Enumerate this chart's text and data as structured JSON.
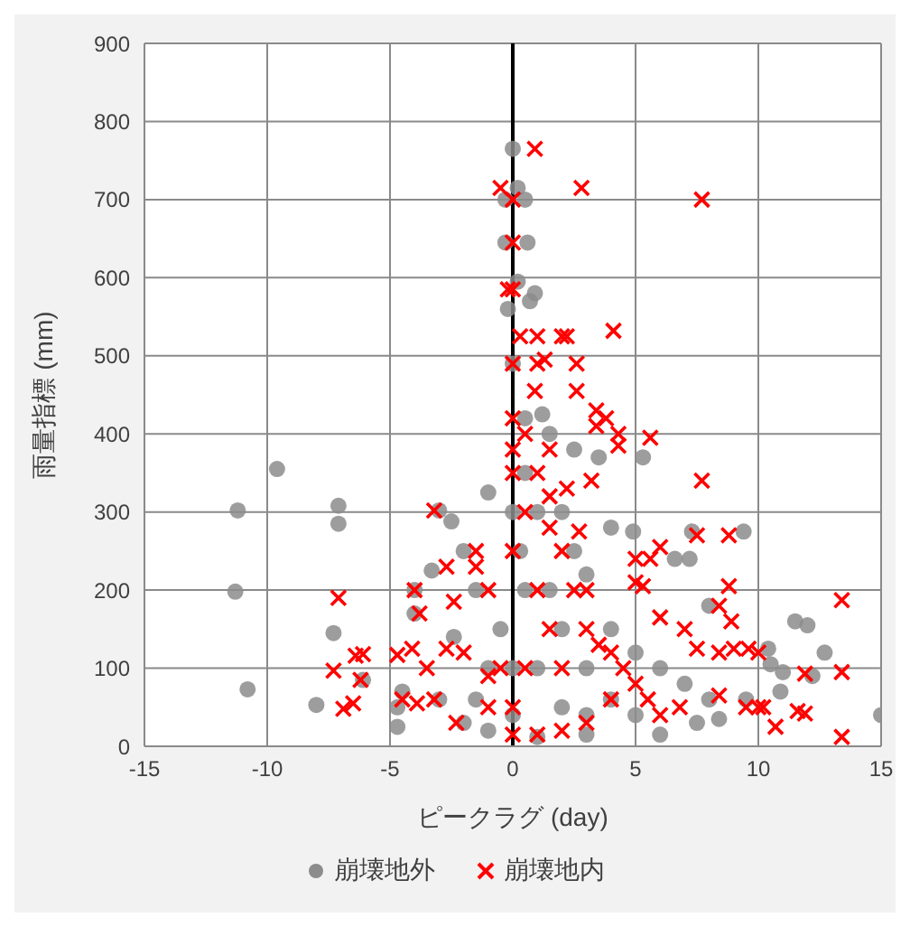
{
  "chart_data": {
    "type": "scatter",
    "xlabel": "ピークラグ (day)",
    "ylabel": "雨量指標 (mm)",
    "xlim": [
      -15,
      15
    ],
    "xticks": [
      -15,
      -10,
      -5,
      0,
      5,
      10,
      15
    ],
    "ylim": [
      0,
      900
    ],
    "yticks": [
      0,
      100,
      200,
      300,
      400,
      500,
      600,
      700,
      800,
      900
    ],
    "grid": true,
    "legend": "bottom",
    "ref_lines": [
      {
        "axis": "x",
        "value": 0,
        "color": "#000000"
      }
    ],
    "series": [
      {
        "name": "崩壊地外",
        "color": "#8c8c8c",
        "marker": "circle",
        "x": [
          -11.2,
          -11.3,
          -10.8,
          -9.6,
          -7.1,
          -7.1,
          -7.3,
          -8,
          -6.1,
          -4.7,
          -4.7,
          -3,
          -2.5,
          -3.3,
          -4,
          -4,
          -2,
          -1,
          -0.3,
          -0.3,
          0.6,
          0,
          0.2,
          0.5,
          0.2,
          -0.2,
          0.9,
          0.7,
          0,
          0.5,
          1.2,
          1.5,
          2.5,
          3.5,
          5.3,
          4,
          4.9,
          7.3,
          9.4,
          6.6,
          7.2,
          8,
          10.4,
          10.5,
          11.5,
          12,
          12.7,
          11,
          12.2,
          10.9,
          15,
          9.5,
          8.4,
          7.5,
          6,
          3,
          1,
          -1,
          -2,
          -3,
          -4.5,
          -2.4,
          -1.5,
          0,
          0.5,
          1,
          2,
          2.5,
          3,
          4,
          5,
          6,
          7,
          8,
          0,
          1,
          2,
          3,
          -0.5,
          -1,
          -1.5,
          0.5,
          1.5,
          4,
          5,
          3,
          2,
          0,
          0.3
        ],
        "values": [
          302,
          198,
          73,
          355,
          308,
          285,
          145,
          53,
          85,
          25,
          50,
          302,
          288,
          225,
          200,
          170,
          250,
          325,
          700,
          645,
          645,
          765,
          715,
          700,
          595,
          560,
          580,
          570,
          490,
          420,
          425,
          400,
          380,
          370,
          370,
          280,
          275,
          275,
          275,
          240,
          240,
          180,
          125,
          105,
          160,
          155,
          120,
          95,
          90,
          70,
          40,
          60,
          35,
          30,
          15,
          15,
          12,
          20,
          30,
          60,
          70,
          140,
          200,
          300,
          350,
          300,
          300,
          250,
          220,
          150,
          120,
          100,
          80,
          60,
          100,
          100,
          150,
          100,
          150,
          100,
          60,
          200,
          200,
          60,
          40,
          40,
          50,
          40,
          250
        ]
      },
      {
        "name": "崩壊地内",
        "color": "#ff0000",
        "marker": "cross",
        "x": [
          0.9,
          -0.5,
          2.8,
          7.7,
          0,
          0,
          0,
          -0.2,
          0.3,
          1,
          2,
          4.1,
          2.2,
          0,
          1,
          1.3,
          2.6,
          2.6,
          0.9,
          3.4,
          3.8,
          3.4,
          4.3,
          5.6,
          4.3,
          0,
          0,
          0,
          3.2,
          2.2,
          7.7,
          -3.2,
          -1.5,
          -2.4,
          -2.7,
          -4,
          -3.8,
          -1.5,
          -7.1,
          -7.3,
          -6.1,
          -6.4,
          -6.2,
          -6.5,
          -6.9,
          -4.7,
          -4.1,
          -3.5,
          -2.7,
          -3.2,
          -4.5,
          -3.9,
          -2.3,
          -2,
          -1,
          -1,
          5,
          5.6,
          6,
          5,
          5.3,
          7.5,
          8.8,
          8.8,
          8.4,
          8.9,
          6,
          7,
          7.5,
          8.4,
          9,
          9.6,
          10,
          9.5,
          10,
          10.2,
          8.4,
          6.8,
          10.7,
          11.6,
          11.9,
          11.9,
          13.4,
          13.4,
          13.4,
          0,
          0.5,
          1,
          1.5,
          2,
          2.5,
          3,
          3.5,
          4,
          4.5,
          5,
          5.5,
          6,
          0,
          0.5,
          1,
          1.5,
          2,
          2.7,
          3,
          4,
          3,
          2,
          1,
          -0.5,
          0,
          -1,
          0.5,
          1.5,
          1.5
        ],
        "values": [
          765,
          715,
          715,
          700,
          700,
          645,
          585,
          585,
          525,
          525,
          525,
          532,
          525,
          490,
          490,
          495,
          490,
          455,
          455,
          430,
          420,
          410,
          400,
          395,
          385,
          420,
          380,
          350,
          340,
          330,
          340,
          302,
          230,
          185,
          230,
          200,
          170,
          250,
          190,
          97,
          118,
          116,
          85,
          55,
          48,
          117,
          125,
          100,
          125,
          60,
          60,
          55,
          30,
          120,
          90,
          200,
          240,
          240,
          255,
          210,
          205,
          270,
          270,
          205,
          180,
          160,
          165,
          150,
          125,
          120,
          125,
          125,
          120,
          50,
          50,
          50,
          65,
          50,
          25,
          45,
          42,
          93,
          95,
          187,
          12,
          15,
          100,
          200,
          150,
          100,
          200,
          150,
          130,
          120,
          100,
          80,
          60,
          40,
          250,
          300,
          350,
          280,
          250,
          275,
          200,
          60,
          30,
          20,
          15,
          100,
          50,
          50,
          400,
          380,
          320
        ]
      }
    ]
  }
}
